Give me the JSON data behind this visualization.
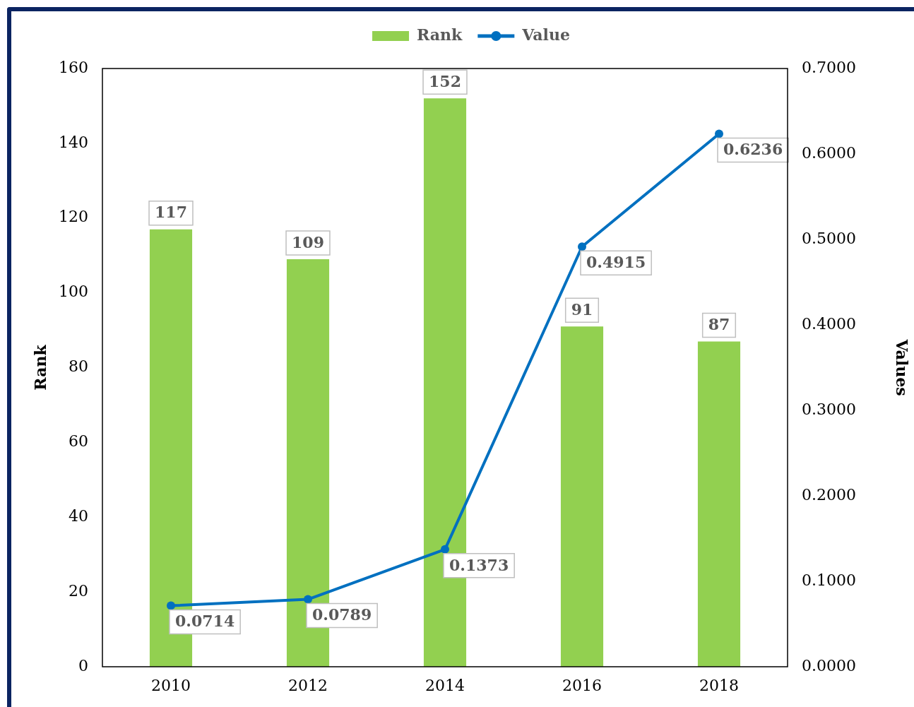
{
  "chart_data": {
    "type": "bar",
    "categories": [
      "2010",
      "2012",
      "2014",
      "2016",
      "2018"
    ],
    "series": [
      {
        "name": "Rank",
        "color": "#92d050",
        "values": [
          117,
          109,
          152,
          91,
          87
        ]
      },
      {
        "name": "Value",
        "type": "line",
        "axis": "y2",
        "color": "#0070c0",
        "values": [
          0.0714,
          0.0789,
          0.1373,
          0.4915,
          0.6236
        ]
      }
    ],
    "ylabel": "Rank",
    "y2label": "Values",
    "ylim": [
      0,
      160
    ],
    "yticks": [
      0,
      20,
      40,
      60,
      80,
      100,
      120,
      140,
      160
    ],
    "y2lim": [
      0,
      0.7
    ],
    "y2ticks": [
      {
        "value": 0,
        "label": "0.0000"
      },
      {
        "value": 0.1,
        "label": "0.1000"
      },
      {
        "value": 0.2,
        "label": "0.2000"
      },
      {
        "value": 0.3,
        "label": "0.3000"
      },
      {
        "value": 0.4,
        "label": "0.4000"
      },
      {
        "value": 0.5,
        "label": "0.5000"
      },
      {
        "value": 0.6,
        "label": "0.6000"
      },
      {
        "value": 0.7,
        "label": "0.7000"
      }
    ],
    "data_labels": true,
    "legend": "top",
    "marker": "circle",
    "line_style": "solid"
  }
}
